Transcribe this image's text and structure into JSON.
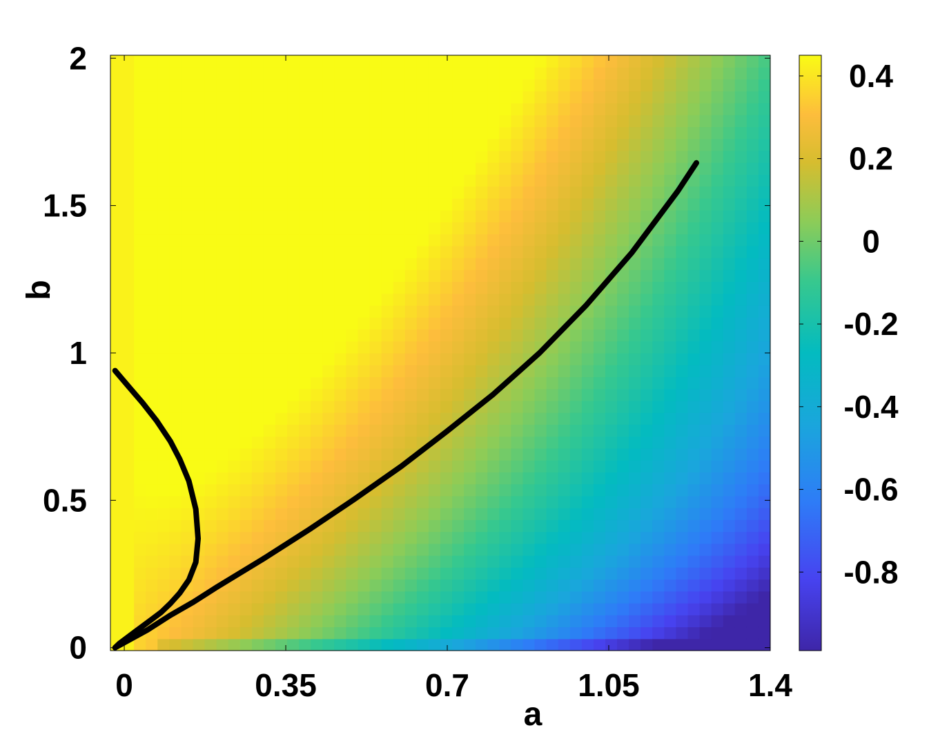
{
  "chart_data": {
    "type": "heatmap",
    "title": "",
    "xlabel": "a",
    "ylabel": "b",
    "xlim": [
      -0.03,
      1.4
    ],
    "ylim": [
      -0.01,
      2.01
    ],
    "x_ticks": [
      {
        "value": 0,
        "label": "0"
      },
      {
        "value": 0.35,
        "label": "0.35"
      },
      {
        "value": 0.7,
        "label": "0.7"
      },
      {
        "value": 1.05,
        "label": "1.05"
      },
      {
        "value": 1.4,
        "label": "1.4"
      }
    ],
    "y_ticks": [
      {
        "value": 0,
        "label": "0"
      },
      {
        "value": 0.5,
        "label": "0.5"
      },
      {
        "value": 1,
        "label": "1"
      },
      {
        "value": 1.5,
        "label": "1.5"
      },
      {
        "value": 2,
        "label": "2"
      }
    ],
    "colorbar": {
      "range": [
        -0.99,
        0.45
      ],
      "ticks": [
        {
          "value": 0.4,
          "label": "0.4"
        },
        {
          "value": 0.2,
          "label": "0.2"
        },
        {
          "value": 0,
          "label": "0"
        },
        {
          "value": -0.2,
          "label": "-0.2"
        },
        {
          "value": -0.4,
          "label": "-0.4"
        },
        {
          "value": -0.6,
          "label": "-0.6"
        },
        {
          "value": -0.8,
          "label": "-0.8"
        }
      ],
      "colormap": "parula"
    },
    "grid": false,
    "curves": [
      {
        "x": [
          -0.02,
          0.01,
          0.04,
          0.07,
          0.1,
          0.12,
          0.14,
          0.155,
          0.16,
          0.155,
          0.14,
          0.12,
          0.1,
          0.08,
          0.05,
          0.02,
          -0.01,
          -0.02
        ],
        "y": [
          0.94,
          0.885,
          0.83,
          0.77,
          0.7,
          0.64,
          0.565,
          0.47,
          0.37,
          0.29,
          0.23,
          0.185,
          0.15,
          0.12,
          0.085,
          0.05,
          0.015,
          0.0
        ]
      },
      {
        "x": [
          -0.02,
          0.05,
          0.1,
          0.15,
          0.2,
          0.3,
          0.4,
          0.5,
          0.6,
          0.7,
          0.8,
          0.9,
          1.0,
          1.1,
          1.2,
          1.24
        ],
        "y": [
          0.0,
          0.06,
          0.11,
          0.155,
          0.205,
          0.3,
          0.4,
          0.505,
          0.615,
          0.735,
          0.86,
          1.0,
          1.16,
          1.34,
          1.55,
          1.645
        ]
      }
    ]
  }
}
